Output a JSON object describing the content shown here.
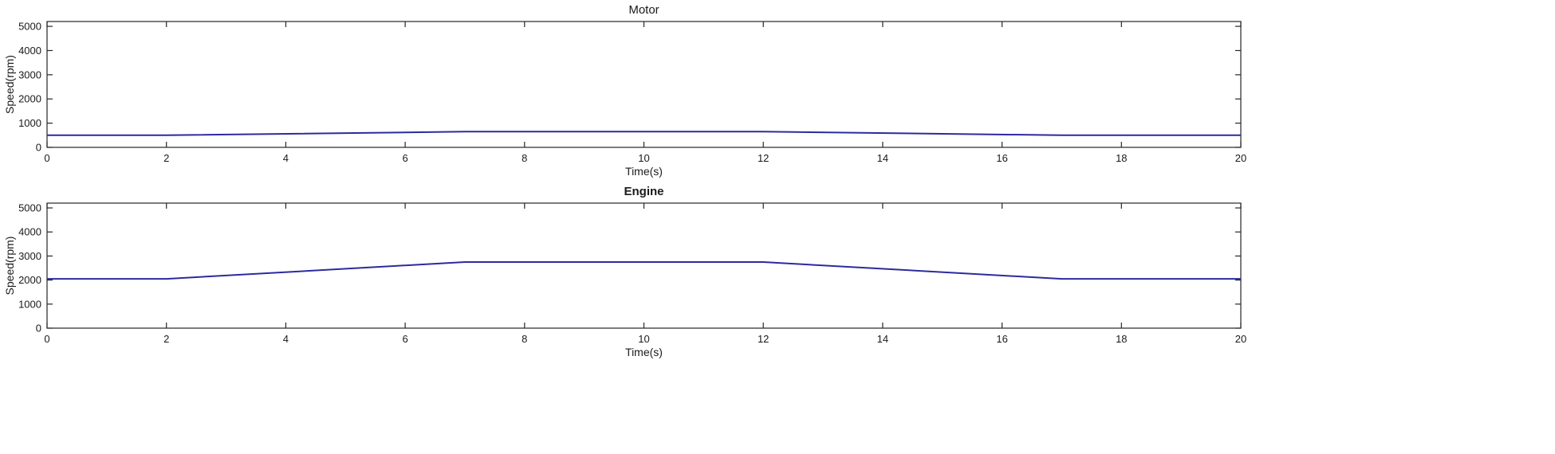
{
  "chart_data": [
    {
      "type": "line",
      "title": "Motor",
      "title_bold": false,
      "xlabel": "Time(s)",
      "ylabel": "Speed(rpm)",
      "xlim": [
        0,
        20
      ],
      "ylim": [
        0,
        5200
      ],
      "xticks": [
        0,
        2,
        4,
        6,
        8,
        10,
        12,
        14,
        16,
        18,
        20
      ],
      "yticks": [
        0,
        1000,
        2000,
        3000,
        4000,
        5000
      ],
      "grid": true,
      "series": [
        {
          "color": "#2b2b9e",
          "x": [
            0,
            2,
            7,
            12,
            17,
            20
          ],
          "y": [
            500,
            500,
            650,
            650,
            500,
            500
          ]
        }
      ]
    },
    {
      "type": "line",
      "title": "Engine",
      "title_bold": true,
      "xlabel": "Time(s)",
      "ylabel": "Speed(rpm)",
      "xlim": [
        0,
        20
      ],
      "ylim": [
        0,
        5200
      ],
      "xticks": [
        0,
        2,
        4,
        6,
        8,
        10,
        12,
        14,
        16,
        18,
        20
      ],
      "yticks": [
        0,
        1000,
        2000,
        3000,
        4000,
        5000
      ],
      "grid": true,
      "series": [
        {
          "color": "#2b2b9e",
          "x": [
            0,
            2,
            7,
            12,
            17,
            20
          ],
          "y": [
            2050,
            2050,
            2750,
            2750,
            2050,
            2050
          ]
        }
      ]
    }
  ]
}
